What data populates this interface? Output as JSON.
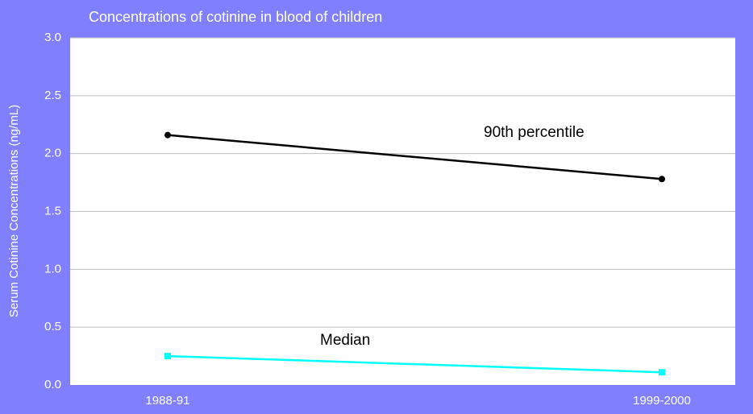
{
  "chart_data": {
    "type": "line",
    "title": "Concentrations of cotinine in blood of children",
    "y_label": "Serum Cotinine Concentrations (ng/mL)",
    "categories": [
      "1988-91",
      "1999-2000"
    ],
    "series": [
      {
        "name": "90th percentile",
        "color": "#000000",
        "marker": "circle",
        "values": [
          2.16,
          1.78
        ]
      },
      {
        "name": "Median",
        "color": "#00ffff",
        "marker": "square",
        "values": [
          0.25,
          0.11
        ]
      }
    ],
    "ylim": [
      0,
      3
    ],
    "yticks": [
      {
        "value": 0,
        "label": "0.0"
      },
      0.5,
      {
        "value": 1,
        "label": "1.0"
      },
      1.5,
      {
        "value": 2,
        "label": "2.0"
      },
      2.5,
      {
        "value": 3,
        "label": "3.0"
      }
    ],
    "grid": true
  }
}
